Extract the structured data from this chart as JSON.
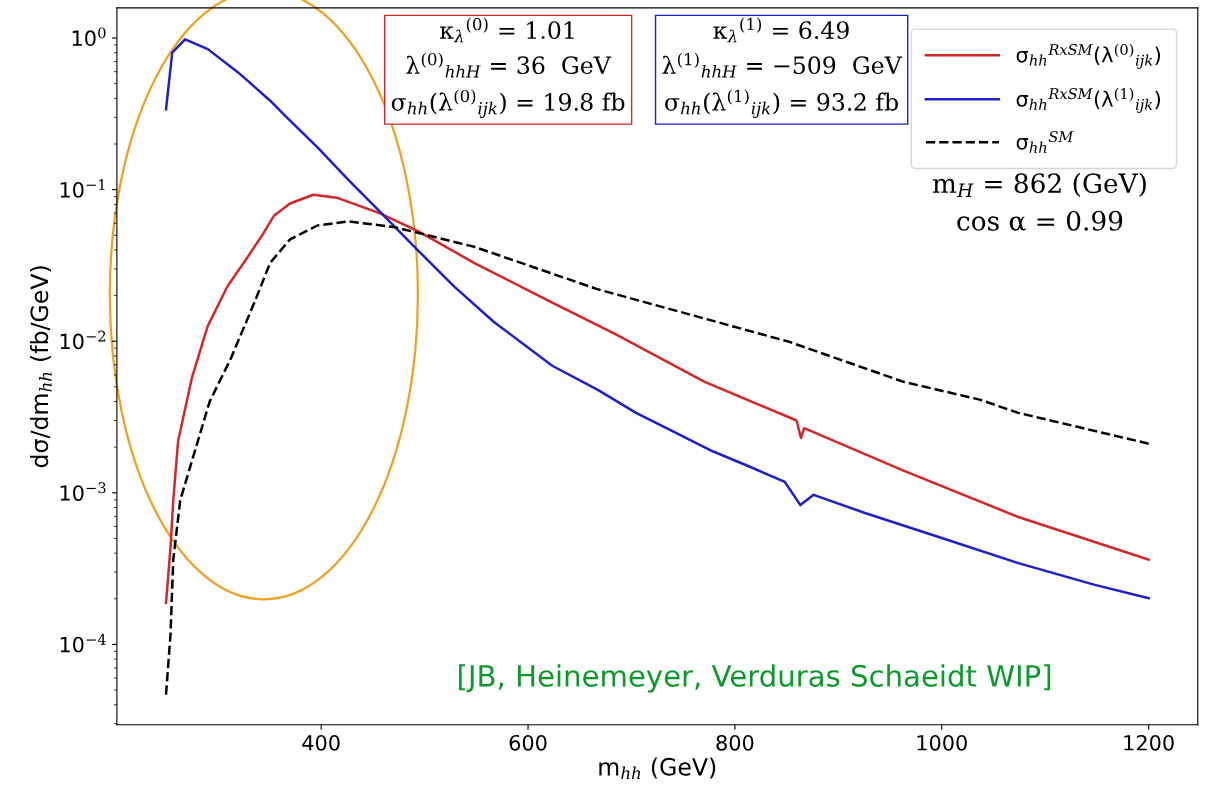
{
  "chart_data": {
    "type": "line",
    "xlabel": "m$_{hh}$ (GeV)",
    "ylabel": "dσ/dm$_{hh}$ (fb/GeV)",
    "log": "y",
    "xlim": [
      202.5,
      1247.5
    ],
    "ylim": [
      2.95e-05,
      1.58
    ],
    "xticks": [
      400,
      600,
      800,
      1000,
      1200
    ],
    "yticks": [
      {
        "value": 0.0001,
        "label": "10$^{−4}$"
      },
      {
        "value": 0.001,
        "label": "10$^{−3}$"
      },
      {
        "value": 0.01,
        "label": "10$^{−2}$"
      },
      {
        "value": 0.1,
        "label": "10$^{−1}$"
      },
      {
        "value": 1,
        "label": "10$^{0}$"
      }
    ],
    "grid": false,
    "legend": "top right",
    "marker": "none",
    "series": [
      {
        "name": "σ$_{hh}$$^{RxSM}$(λ$^{(0)}$$_{ijk}$)",
        "color": "#d62728",
        "line_style": "solid",
        "x": [
          250,
          254.3,
          257,
          261.7,
          275,
          290.2,
          309.2,
          327.8,
          343,
          354.6,
          369.9,
          392.4,
          415,
          457,
          494,
          547.8,
          623.4,
          684,
          770.8,
          859.6,
          863.9,
          867,
          963,
          1074,
          1200
        ],
        "values": [
          0.000188,
          0.000433,
          0.00089,
          0.0022,
          0.00573,
          0.01254,
          0.0229,
          0.035,
          0.05,
          0.0676,
          0.081,
          0.0925,
          0.0885,
          0.0697,
          0.0531,
          0.0329,
          0.018,
          0.0112,
          0.0054,
          0.003,
          0.0023,
          0.00267,
          0.0014,
          0.000693,
          0.000363
        ]
      },
      {
        "name": "σ$_{hh}$$^{RxSM}$(λ$^{(1)}$$_{ijk}$)",
        "color": "#1f1fd0",
        "line_style": "solid",
        "x": [
          250,
          256,
          268.4,
          290.4,
          320,
          350.7,
          366,
          396.7,
          426.3,
          457,
          494,
          528.7,
          567,
          623.4,
          667.5,
          704.4,
          741.1,
          778.5,
          815,
          848.3,
          863.3,
          876.1,
          925.8,
          1000,
          1074,
          1148,
          1200
        ],
        "values": [
          0.339,
          0.8,
          0.98,
          0.845,
          0.591,
          0.386,
          0.303,
          0.189,
          0.116,
          0.0714,
          0.0395,
          0.0229,
          0.0134,
          0.00689,
          0.00478,
          0.00337,
          0.00252,
          0.00188,
          0.00148,
          0.00118,
          0.00083,
          0.00097,
          0.000736,
          0.000504,
          0.000344,
          0.000247,
          0.000202
        ]
      },
      {
        "name": "σ$_{hh}$$^{SM}$",
        "color": "#000000",
        "line_style": "dashed",
        "x": [
          250,
          254.3,
          257,
          263.7,
          275,
          292.2,
          312.9,
          335.4,
          350.7,
          369.9,
          396.3,
          426.3,
          472,
          547.8,
          667.5,
          852,
          963,
          1036.6,
          1074,
          1200
        ],
        "values": [
          4.67e-05,
          0.000115,
          0.00036,
          0.00089,
          0.00162,
          0.004,
          0.00776,
          0.018,
          0.0329,
          0.047,
          0.058,
          0.0618,
          0.0564,
          0.042,
          0.022,
          0.00994,
          0.0054,
          0.00412,
          0.00337,
          0.00211
        ]
      }
    ],
    "annotations": [
      "κ$_{λ}$$^{(0)}$ = 1.01\nλ$^{(0)}$$_{hhH}$ = 36  GeV\nσ$_{hh}$(λ$^{(0)}$$_{ijk}$) = 19.8 fb",
      "κ$_{λ}$$^{(1)}$ = 6.49\nλ$^{(1)}$$_{hhH}$ = −509  GeV\nσ$_{hh}$(λ$^{(1)}$$_{ijk}$) = 93.2 fb",
      "m$_{H}$ = 862 (GeV)\ncos α = 0.99",
      "[JB, Heinemeyer, Verduras Schaeidt WIP]"
    ]
  }
}
